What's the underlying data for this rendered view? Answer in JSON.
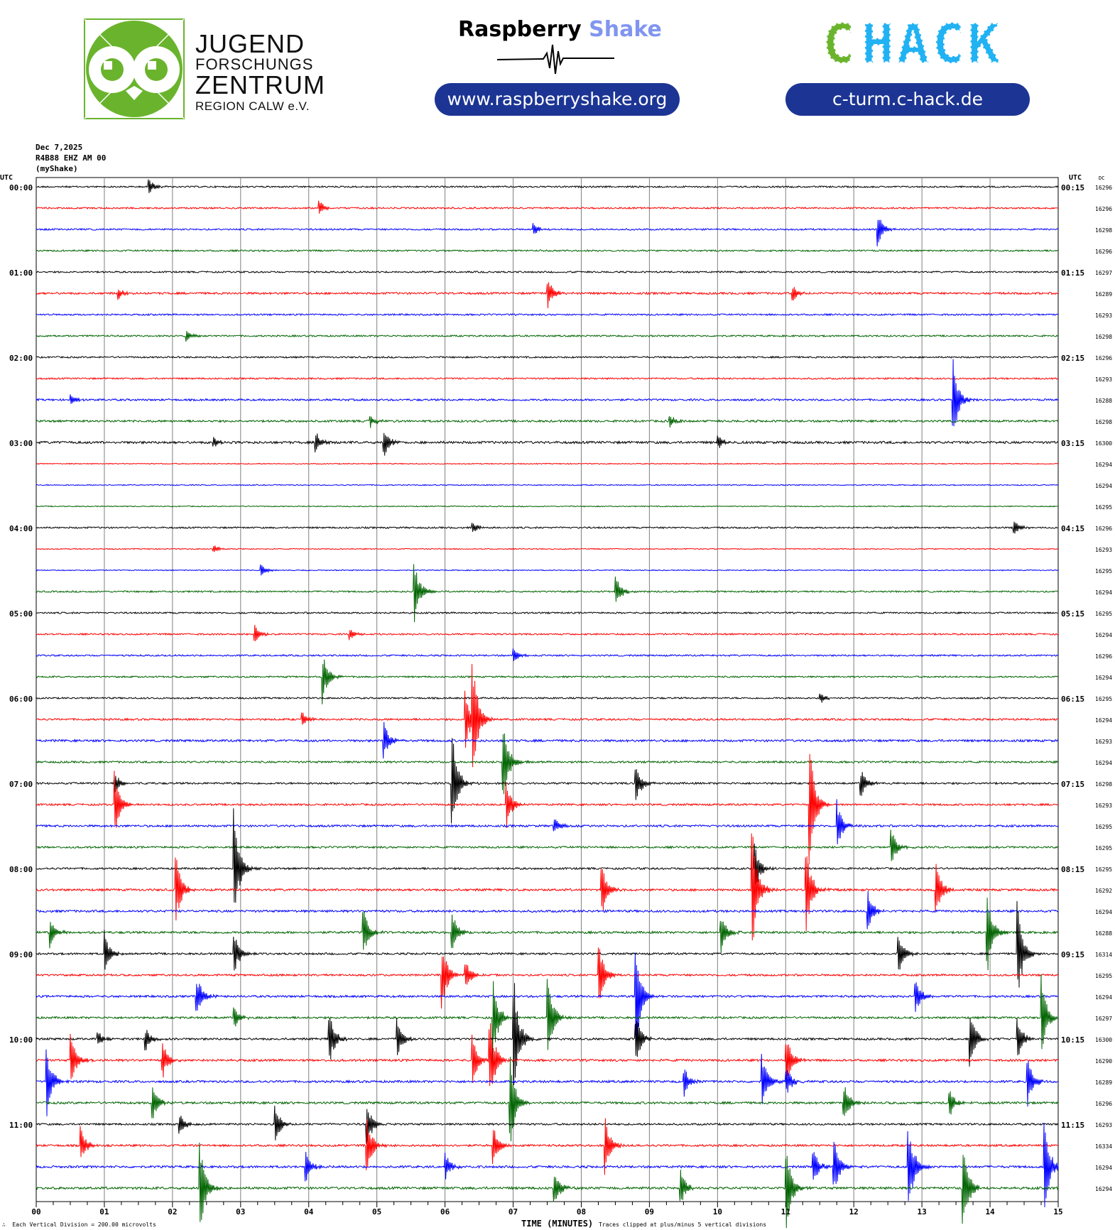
{
  "header": {
    "jfz_logo": {
      "line1": "JUGEND",
      "line2": "FORSCHUNGS",
      "line3": "ZENTRUM",
      "line4": "REGION CALW e.V."
    },
    "rs_logo": {
      "word1": "Raspberry",
      "word2": "Shake",
      "url": "www.raspberryshake.org"
    },
    "chack_logo": {
      "text": "CHACK",
      "url": "c-turm.c-hack.de"
    }
  },
  "meta": {
    "date": "Dec 7,2025",
    "station": "R4B88 EHZ AM 00",
    "network": "(myShake)"
  },
  "colors": {
    "trace_cycle": [
      "#000000",
      "#ff0000",
      "#0000ff",
      "#006400"
    ],
    "grid": "#808080",
    "pill": "#1c3594",
    "owl_green": "#6ab42d",
    "chack_green": "#6ab42d",
    "chack_blue": "#21b2f3"
  },
  "chart_data": {
    "type": "line",
    "subtype": "helicorder",
    "xlabel": "TIME (MINUTES)",
    "x_ticks": [
      "00",
      "01",
      "02",
      "03",
      "04",
      "05",
      "06",
      "07",
      "08",
      "09",
      "10",
      "11",
      "12",
      "13",
      "14",
      "15"
    ],
    "xlim": [
      0,
      15
    ],
    "left_axis_title": "UTC",
    "right_axis_title": "UTC",
    "dc_title": "DC",
    "left_labels": [
      "00:00",
      "01:00",
      "02:00",
      "03:00",
      "04:00",
      "05:00",
      "06:00",
      "07:00",
      "08:00",
      "09:00",
      "10:00",
      "11:00"
    ],
    "right_labels": [
      "00:15",
      "01:15",
      "02:15",
      "03:15",
      "04:15",
      "05:15",
      "06:15",
      "07:15",
      "08:15",
      "09:15",
      "10:15",
      "11:15"
    ],
    "dc_values": [
      16296,
      16296,
      16298,
      16296,
      16297,
      16289,
      16293,
      16298,
      16296,
      16293,
      16288,
      16298,
      16300,
      16294,
      16294,
      16295,
      16296,
      16293,
      16295,
      16294,
      16295,
      16294,
      16296,
      16294,
      16295,
      16294,
      16293,
      16294,
      16298,
      16293,
      16295,
      16295,
      16295,
      16292,
      16294,
      16288,
      16314,
      16295,
      16294,
      16297,
      16300,
      16290,
      16289,
      16296,
      16293,
      16334,
      16294,
      16294
    ],
    "footer_left": "Each Vertical Division =  200.00 microvolts",
    "footer_right": "Traces clipped at plus/minus 5 vertical divisions",
    "lines_per_hour": 4,
    "minutes_per_line": 15,
    "noise_level": [
      1,
      1,
      1,
      1,
      1,
      1.3,
      1,
      1,
      1,
      1,
      1.2,
      1.3,
      1.5,
      0.6,
      0.6,
      0.6,
      1,
      0.6,
      0.6,
      1,
      1,
      1,
      1,
      1,
      1,
      1.2,
      1.4,
      1.2,
      1.2,
      1.2,
      1.3,
      1.2,
      1.2,
      1.4,
      1.4,
      1.4,
      1.2,
      1.2,
      1.3,
      1.3,
      1.3,
      1.4,
      1.4,
      1.4,
      1.2,
      1.3,
      1.4,
      1.5
    ],
    "events": [
      [
        0,
        1.65,
        0.4
      ],
      [
        1,
        4.15,
        0.4
      ],
      [
        2,
        7.3,
        0.3
      ],
      [
        2,
        12.35,
        0.8
      ],
      [
        5,
        7.5,
        0.9
      ],
      [
        5,
        1.2,
        0.3
      ],
      [
        5,
        11.1,
        0.4
      ],
      [
        7,
        2.2,
        0.3
      ],
      [
        10,
        13.45,
        2.2
      ],
      [
        10,
        0.5,
        0.3
      ],
      [
        11,
        4.9,
        0.3
      ],
      [
        11,
        9.3,
        0.3
      ],
      [
        12,
        4.1,
        0.6
      ],
      [
        12,
        5.1,
        0.8
      ],
      [
        12,
        2.6,
        0.3
      ],
      [
        12,
        10.0,
        0.4
      ],
      [
        16,
        6.4,
        0.3
      ],
      [
        16,
        14.35,
        0.4
      ],
      [
        17,
        2.6,
        0.2
      ],
      [
        18,
        3.3,
        0.3
      ],
      [
        19,
        5.55,
        1.6
      ],
      [
        19,
        8.5,
        0.9
      ],
      [
        21,
        3.2,
        0.5
      ],
      [
        21,
        4.6,
        0.3
      ],
      [
        22,
        7.0,
        0.4
      ],
      [
        23,
        4.2,
        1.3
      ],
      [
        24,
        11.5,
        0.3
      ],
      [
        25,
        6.3,
        1.5
      ],
      [
        25,
        6.4,
        3.0
      ],
      [
        25,
        3.9,
        0.4
      ],
      [
        26,
        5.1,
        1.0
      ],
      [
        27,
        6.85,
        2.3
      ],
      [
        28,
        1.15,
        0.5
      ],
      [
        28,
        6.1,
        2.8
      ],
      [
        28,
        8.8,
        1.0
      ],
      [
        28,
        12.1,
        0.8
      ],
      [
        29,
        1.15,
        1.6
      ],
      [
        29,
        6.9,
        1.2
      ],
      [
        29,
        11.35,
        3.0
      ],
      [
        30,
        11.75,
        1.3
      ],
      [
        30,
        7.6,
        0.4
      ],
      [
        31,
        12.55,
        1.0
      ],
      [
        32,
        10.55,
        1.2
      ],
      [
        32,
        2.9,
        3.0
      ],
      [
        33,
        2.05,
        1.7
      ],
      [
        33,
        8.3,
        1.3
      ],
      [
        33,
        10.5,
        3.5
      ],
      [
        33,
        11.3,
        2.3
      ],
      [
        33,
        13.2,
        1.5
      ],
      [
        34,
        12.2,
        1.2
      ],
      [
        35,
        0.2,
        0.8
      ],
      [
        35,
        4.8,
        1.3
      ],
      [
        35,
        6.1,
        1.0
      ],
      [
        35,
        10.05,
        1.0
      ],
      [
        35,
        13.95,
        2.4
      ],
      [
        36,
        1.0,
        1.2
      ],
      [
        36,
        2.9,
        1.1
      ],
      [
        36,
        12.65,
        1.2
      ],
      [
        36,
        14.4,
        2.6
      ],
      [
        37,
        6.3,
        0.7
      ],
      [
        37,
        5.95,
        1.8
      ],
      [
        37,
        8.25,
        1.8
      ],
      [
        38,
        2.35,
        1.2
      ],
      [
        38,
        8.8,
        2.8
      ],
      [
        38,
        12.9,
        1.1
      ],
      [
        39,
        2.9,
        0.6
      ],
      [
        39,
        6.7,
        2.2
      ],
      [
        39,
        7.5,
        2.6
      ],
      [
        39,
        14.75,
        2.0
      ],
      [
        40,
        0.9,
        0.4
      ],
      [
        40,
        1.6,
        0.6
      ],
      [
        40,
        4.3,
        1.4
      ],
      [
        40,
        5.3,
        1.0
      ],
      [
        40,
        7.0,
        3.5
      ],
      [
        40,
        8.8,
        1.3
      ],
      [
        40,
        13.7,
        1.6
      ],
      [
        40,
        14.4,
        1.2
      ],
      [
        41,
        0.5,
        1.5
      ],
      [
        41,
        1.85,
        1.0
      ],
      [
        41,
        6.4,
        1.4
      ],
      [
        41,
        6.65,
        2.4
      ],
      [
        41,
        11.0,
        1.5
      ],
      [
        42,
        0.15,
        1.8
      ],
      [
        42,
        9.5,
        0.8
      ],
      [
        42,
        10.65,
        1.5
      ],
      [
        42,
        11.0,
        0.8
      ],
      [
        42,
        14.55,
        1.2
      ],
      [
        43,
        1.7,
        1.0
      ],
      [
        43,
        6.95,
        2.6
      ],
      [
        43,
        11.85,
        1.1
      ],
      [
        43,
        13.4,
        0.8
      ],
      [
        44,
        2.1,
        0.6
      ],
      [
        44,
        3.5,
        1.0
      ],
      [
        44,
        4.85,
        1.2
      ],
      [
        45,
        0.65,
        1.0
      ],
      [
        45,
        4.85,
        1.6
      ],
      [
        45,
        6.7,
        1.2
      ],
      [
        45,
        8.35,
        1.4
      ],
      [
        46,
        3.95,
        0.8
      ],
      [
        46,
        6.0,
        0.7
      ],
      [
        46,
        11.4,
        1.0
      ],
      [
        46,
        11.7,
        1.5
      ],
      [
        46,
        12.8,
        2.5
      ],
      [
        46,
        14.8,
        2.2
      ],
      [
        47,
        2.4,
        2.4
      ],
      [
        47,
        7.6,
        0.9
      ],
      [
        47,
        9.45,
        1.0
      ],
      [
        47,
        11.0,
        2.4
      ],
      [
        47,
        13.6,
        2.5
      ]
    ]
  }
}
